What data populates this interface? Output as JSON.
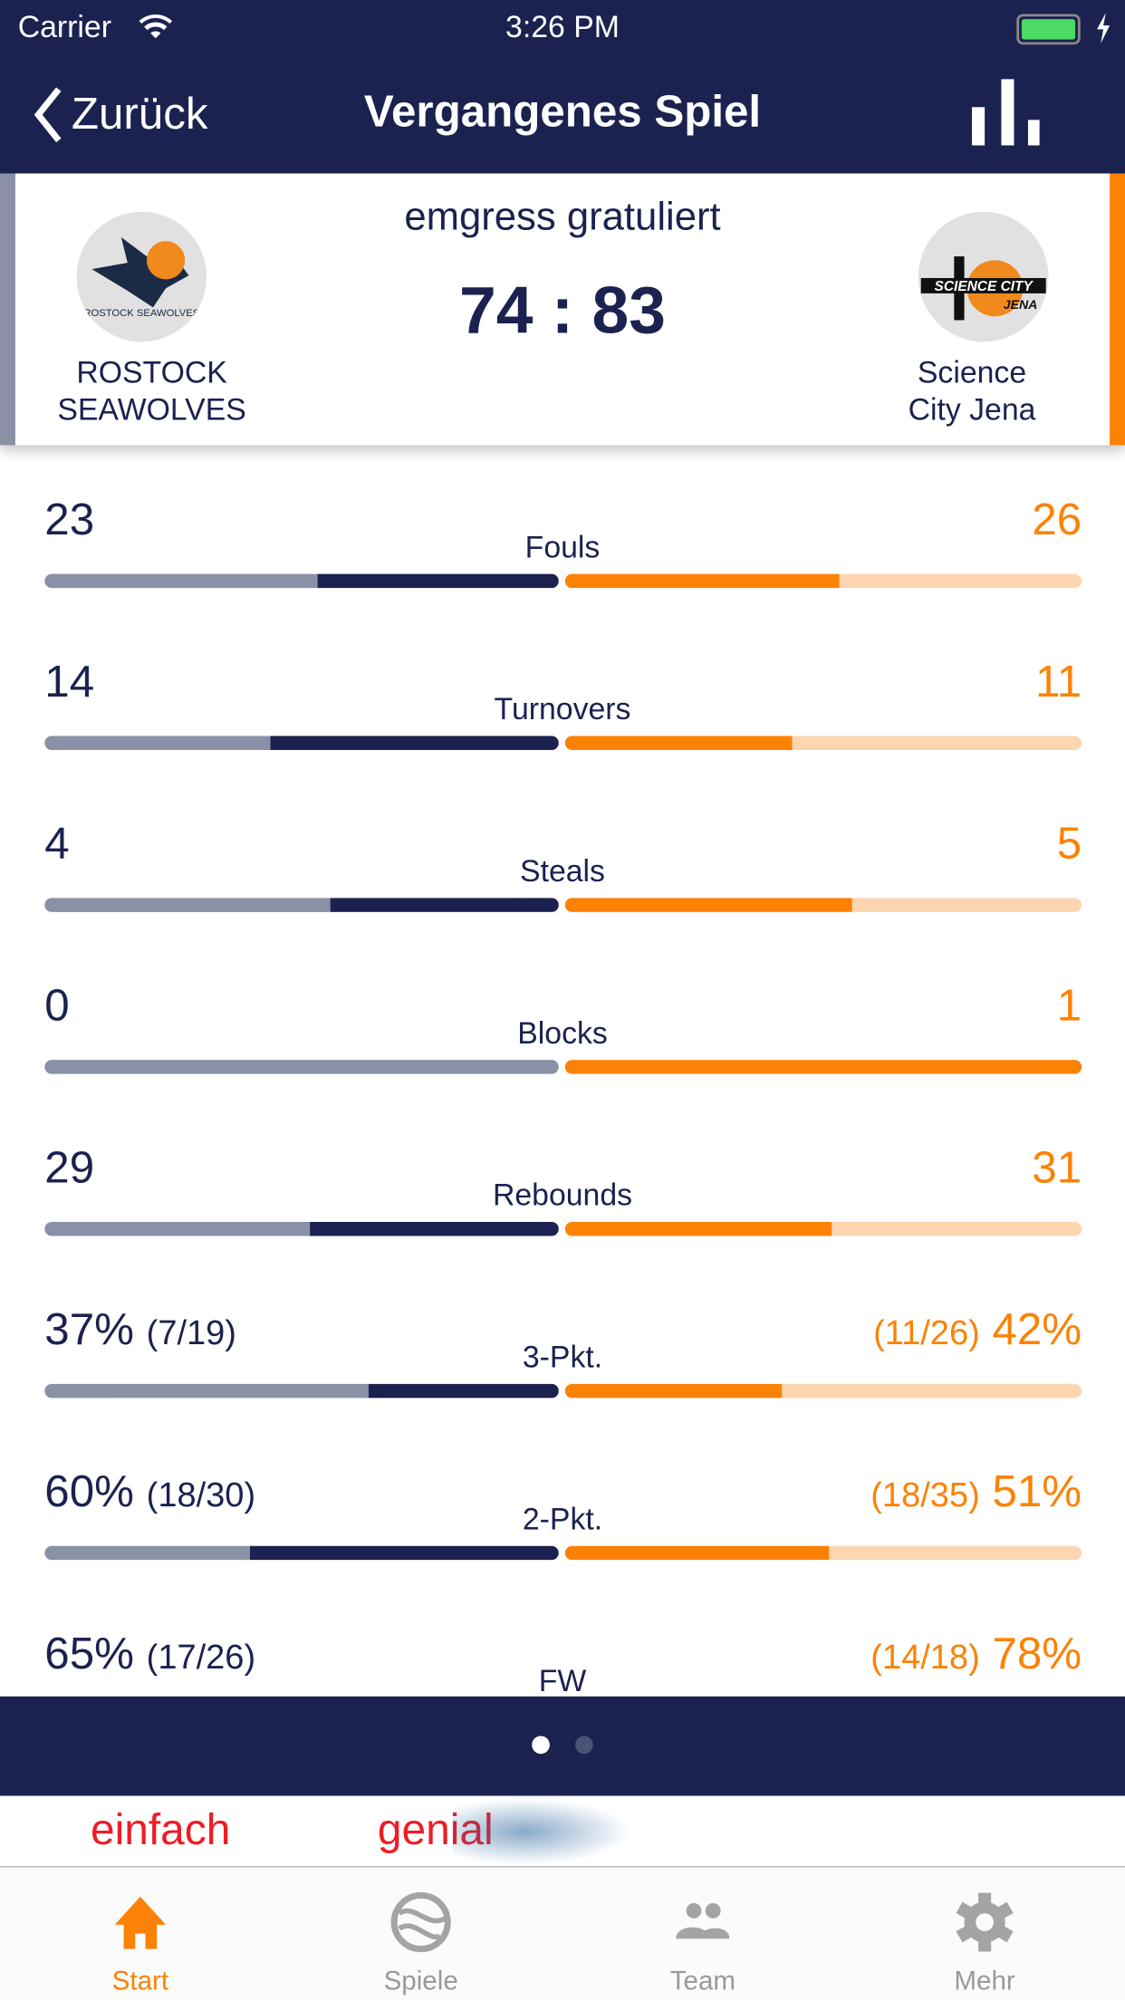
{
  "status_bar": {
    "carrier": "Carrier",
    "time": "3:26 PM",
    "battery_color": "#4cd964"
  },
  "nav": {
    "back_label": "Zurück",
    "title": "Vergangenes Spiel",
    "right_icon": "bar-chart-icon"
  },
  "colors": {
    "navy": "#1b2250",
    "orange": "#fb8204",
    "grey": "#8a90a6",
    "light_orange": "#fdd5b0"
  },
  "game": {
    "sponsor_text": "emgress gratuliert",
    "score": "74 : 83",
    "home": {
      "name_line1": "ROSTOCK",
      "name_line2": "SEAWOLVES",
      "logo_text": "ROSTOCK SEAWOLVES"
    },
    "away": {
      "name_line1": "Science",
      "name_line2": "City Jena",
      "logo_text": "SCIENCE CITY JENA"
    }
  },
  "stats": [
    {
      "label": "Fouls",
      "home": "23",
      "home_sub": "",
      "away": "26",
      "away_sub": "",
      "home_share": 0.469,
      "away_share": 0.531
    },
    {
      "label": "Turnovers",
      "home": "14",
      "home_sub": "",
      "away": "11",
      "away_sub": "",
      "home_share": 0.56,
      "away_share": 0.44
    },
    {
      "label": "Steals",
      "home": "4",
      "home_sub": "",
      "away": "5",
      "away_sub": "",
      "home_share": 0.444,
      "away_share": 0.556
    },
    {
      "label": "Blocks",
      "home": "0",
      "home_sub": "",
      "away": "1",
      "away_sub": "",
      "home_share": 0,
      "away_share": 1
    },
    {
      "label": "Rebounds",
      "home": "29",
      "home_sub": "",
      "away": "31",
      "away_sub": "",
      "home_share": 0.483,
      "away_share": 0.517
    },
    {
      "label": "3-Pkt.",
      "home": "37%",
      "home_sub": "(7/19)",
      "away": "42%",
      "away_sub": "(11/26)",
      "home_share": 0.37,
      "away_share": 0.42
    },
    {
      "label": "2-Pkt.",
      "home": "60%",
      "home_sub": "(18/30)",
      "away": "51%",
      "away_sub": "(18/35)",
      "home_share": 0.6,
      "away_share": 0.51
    },
    {
      "label": "FW",
      "home": "65%",
      "home_sub": "(17/26)",
      "away": "78%",
      "away_sub": "(14/18)",
      "home_share": 0.65,
      "away_share": 0.78
    }
  ],
  "pager": {
    "pages": 2,
    "current": 1
  },
  "ad": {
    "word1": "einfach",
    "word2": "genial"
  },
  "tabs": [
    {
      "label": "Start",
      "icon": "home-icon",
      "active": true
    },
    {
      "label": "Spiele",
      "icon": "ball-icon"
    },
    {
      "label": "Team",
      "icon": "team-icon"
    },
    {
      "label": "Mehr",
      "icon": "gear-icon"
    }
  ]
}
